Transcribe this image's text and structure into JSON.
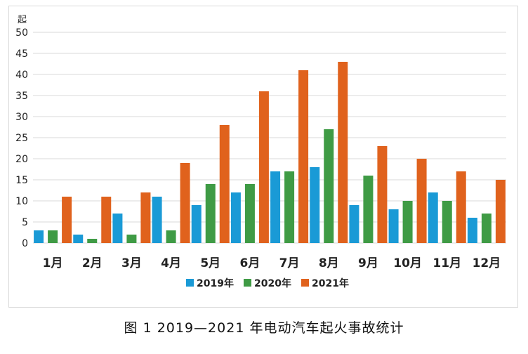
{
  "caption": "图 1  2019—2021 年电动汽车起火事故统计",
  "colors": {
    "series_2019": "#1a9ad6",
    "series_2020": "#3f9b45",
    "series_2021": "#e0621d",
    "grid": "#d9d9d9",
    "axis_text": "#222222"
  },
  "chart_data": {
    "type": "bar",
    "ylabel": "起",
    "ylim": [
      0,
      50
    ],
    "yticks": [
      0,
      5,
      10,
      15,
      20,
      25,
      30,
      35,
      40,
      45,
      50
    ],
    "grid": true,
    "legend_position": "bottom",
    "categories": [
      "1月",
      "2月",
      "3月",
      "4月",
      "5月",
      "6月",
      "7月",
      "8月",
      "9月",
      "10月",
      "11月",
      "12月"
    ],
    "series": [
      {
        "name": "2019年",
        "values": [
          3,
          2,
          7,
          11,
          9,
          12,
          17,
          18,
          9,
          8,
          12,
          6
        ]
      },
      {
        "name": "2020年",
        "values": [
          3,
          1,
          2,
          3,
          14,
          14,
          17,
          27,
          16,
          10,
          10,
          7
        ]
      },
      {
        "name": "2021年",
        "values": [
          11,
          11,
          12,
          19,
          28,
          36,
          41,
          43,
          23,
          20,
          17,
          15
        ]
      }
    ]
  }
}
